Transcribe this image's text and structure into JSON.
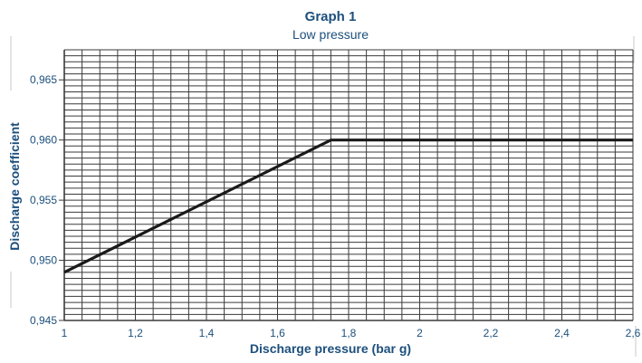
{
  "colors": {
    "text": "#1c4f7c",
    "grid": "#3a3a3a",
    "line": "#1a1a1a",
    "edge_marks": "#c9c9c9",
    "background": "#ffffff"
  },
  "chart_data": {
    "type": "line",
    "title": "Graph 1",
    "subtitle": "Low pressure",
    "xlabel": "Discharge pressure (bar g)",
    "ylabel": "Discharge coefficient",
    "xlim": [
      1,
      2.6
    ],
    "ylim": [
      0.945,
      0.9675
    ],
    "x_ticks": [
      1,
      1.2,
      1.4,
      1.6,
      1.8,
      2,
      2.2,
      2.4,
      2.6
    ],
    "x_tick_labels": [
      "1",
      "1,2",
      "1,4",
      "1,6",
      "1,8",
      "2",
      "2,2",
      "2,4",
      "2,6"
    ],
    "y_ticks": [
      0.945,
      0.95,
      0.955,
      0.96,
      0.965
    ],
    "y_tick_labels": [
      "0,945",
      "0,950",
      "0,955",
      "0,960",
      "0,965"
    ],
    "grid": true,
    "x_minor_step": 0.05,
    "y_minor_step": 0.0005,
    "series": [
      {
        "x": [
          1,
          1.75,
          2.6
        ],
        "y": [
          0.949,
          0.96,
          0.96
        ]
      }
    ]
  }
}
